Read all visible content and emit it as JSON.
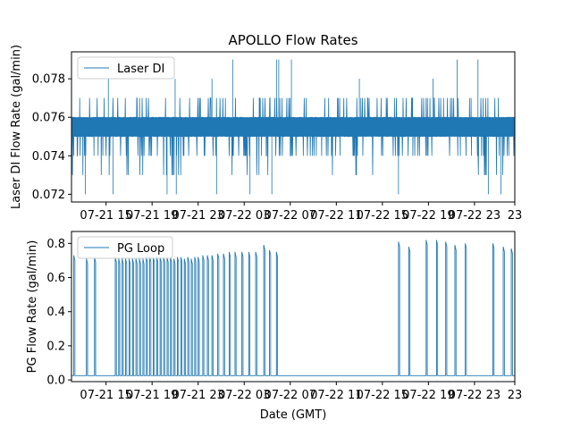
{
  "chart_data": [
    {
      "type": "line",
      "title": "APOLLO Flow Rates",
      "xlabel": "",
      "ylabel": "Laser DI Flow Rate (gal/min)",
      "legend": {
        "position": "top-left",
        "entries": [
          "Laser DI"
        ]
      },
      "series_color": "#1f77b4",
      "xlim_hours": [
        0,
        38.5
      ],
      "ylim": [
        0.0716,
        0.0794
      ],
      "x_ticks": [
        {
          "hour": 3,
          "label": "07-21 15"
        },
        {
          "hour": 7,
          "label": "07-21 19"
        },
        {
          "hour": 11,
          "label": "07-21 23"
        },
        {
          "hour": 15,
          "label": "07-22 03"
        },
        {
          "hour": 19,
          "label": "07-22 07"
        },
        {
          "hour": 23,
          "label": "07-22 11"
        },
        {
          "hour": 27,
          "label": "07-22 15"
        },
        {
          "hour": 31,
          "label": "07-22 19"
        },
        {
          "hour": 35,
          "label": "07-22 23"
        },
        {
          "hour": 38.5,
          "label": "23"
        }
      ],
      "y_ticks": [
        {
          "value": 0.072,
          "label": "0.072"
        },
        {
          "value": 0.074,
          "label": "0.074"
        },
        {
          "value": 0.076,
          "label": "0.076"
        },
        {
          "value": 0.078,
          "label": "0.078"
        }
      ],
      "series": [
        {
          "name": "Laser DI",
          "baseline_band": [
            0.075,
            0.076
          ],
          "typical_range": [
            0.073,
            0.077
          ],
          "spike_highs": [
            {
              "hour": 14.0,
              "value": 0.079
            },
            {
              "hour": 17.8,
              "value": 0.079
            },
            {
              "hour": 18.0,
              "value": 0.079
            },
            {
              "hour": 19.1,
              "value": 0.079
            },
            {
              "hour": 33.5,
              "value": 0.079
            },
            {
              "hour": 35.3,
              "value": 0.079
            },
            {
              "hour": 3.2,
              "value": 0.078
            },
            {
              "hour": 9.0,
              "value": 0.078
            },
            {
              "hour": 12.2,
              "value": 0.078
            },
            {
              "hour": 25.0,
              "value": 0.078
            },
            {
              "hour": 31.4,
              "value": 0.078
            }
          ],
          "spike_lows": [
            {
              "hour": 1.2,
              "value": 0.072
            },
            {
              "hour": 3.6,
              "value": 0.072
            },
            {
              "hour": 8.3,
              "value": 0.072
            },
            {
              "hour": 9.1,
              "value": 0.072
            },
            {
              "hour": 12.6,
              "value": 0.072
            },
            {
              "hour": 15.5,
              "value": 0.072
            },
            {
              "hour": 17.4,
              "value": 0.072
            },
            {
              "hour": 28.4,
              "value": 0.072
            },
            {
              "hour": 36.2,
              "value": 0.072
            },
            {
              "hour": 37.3,
              "value": 0.072
            }
          ]
        }
      ]
    },
    {
      "type": "line",
      "title": "",
      "xlabel": "Date (GMT)",
      "ylabel": "PG Flow Rate (gal/min)",
      "legend": {
        "position": "top-left",
        "entries": [
          "PG Loop"
        ]
      },
      "series_color": "#1f77b4",
      "xlim_hours": [
        0,
        38.5
      ],
      "ylim": [
        -0.01,
        0.87
      ],
      "x_ticks": [
        {
          "hour": 3,
          "label": "07-21 15"
        },
        {
          "hour": 7,
          "label": "07-21 19"
        },
        {
          "hour": 11,
          "label": "07-21 23"
        },
        {
          "hour": 15,
          "label": "07-22 03"
        },
        {
          "hour": 19,
          "label": "07-22 07"
        },
        {
          "hour": 23,
          "label": "07-22 11"
        },
        {
          "hour": 27,
          "label": "07-22 15"
        },
        {
          "hour": 31,
          "label": "07-22 19"
        },
        {
          "hour": 35,
          "label": "07-22 23"
        },
        {
          "hour": 38.5,
          "label": "23"
        }
      ],
      "y_ticks": [
        {
          "value": 0.0,
          "label": "0.0"
        },
        {
          "value": 0.2,
          "label": "0.2"
        },
        {
          "value": 0.4,
          "label": "0.4"
        },
        {
          "value": 0.6,
          "label": "0.6"
        },
        {
          "value": 0.8,
          "label": "0.8"
        }
      ],
      "series": [
        {
          "name": "PG Loop",
          "baseline": 0.025,
          "pulse_width_hours": 0.1,
          "pulses": [
            {
              "hour": 0.2,
              "peak": 0.73
            },
            {
              "hour": 1.3,
              "peak": 0.71
            },
            {
              "hour": 2.0,
              "peak": 0.72
            },
            {
              "hour": 3.8,
              "peak": 0.72
            },
            {
              "hour": 4.1,
              "peak": 0.71
            },
            {
              "hour": 4.4,
              "peak": 0.71
            },
            {
              "hour": 4.7,
              "peak": 0.71
            },
            {
              "hour": 5.0,
              "peak": 0.71
            },
            {
              "hour": 5.3,
              "peak": 0.71
            },
            {
              "hour": 5.6,
              "peak": 0.71
            },
            {
              "hour": 5.9,
              "peak": 0.71
            },
            {
              "hour": 6.2,
              "peak": 0.71
            },
            {
              "hour": 6.5,
              "peak": 0.72
            },
            {
              "hour": 6.8,
              "peak": 0.72
            },
            {
              "hour": 7.1,
              "peak": 0.72
            },
            {
              "hour": 7.4,
              "peak": 0.72
            },
            {
              "hour": 7.7,
              "peak": 0.72
            },
            {
              "hour": 8.0,
              "peak": 0.72
            },
            {
              "hour": 8.3,
              "peak": 0.72
            },
            {
              "hour": 8.6,
              "peak": 0.72
            },
            {
              "hour": 8.9,
              "peak": 0.71
            },
            {
              "hour": 9.2,
              "peak": 0.72
            },
            {
              "hour": 9.5,
              "peak": 0.72
            },
            {
              "hour": 9.8,
              "peak": 0.71
            },
            {
              "hour": 10.1,
              "peak": 0.72
            },
            {
              "hour": 10.4,
              "peak": 0.71
            },
            {
              "hour": 10.7,
              "peak": 0.72
            },
            {
              "hour": 11.0,
              "peak": 0.72
            },
            {
              "hour": 11.4,
              "peak": 0.73
            },
            {
              "hour": 11.8,
              "peak": 0.73
            },
            {
              "hour": 12.2,
              "peak": 0.73
            },
            {
              "hour": 12.7,
              "peak": 0.74
            },
            {
              "hour": 13.2,
              "peak": 0.74
            },
            {
              "hour": 13.7,
              "peak": 0.75
            },
            {
              "hour": 14.2,
              "peak": 0.75
            },
            {
              "hour": 14.8,
              "peak": 0.75
            },
            {
              "hour": 15.4,
              "peak": 0.75
            },
            {
              "hour": 16.0,
              "peak": 0.75
            },
            {
              "hour": 16.7,
              "peak": 0.79
            },
            {
              "hour": 17.2,
              "peak": 0.76
            },
            {
              "hour": 17.8,
              "peak": 0.75
            },
            {
              "hour": 28.4,
              "peak": 0.81
            },
            {
              "hour": 29.3,
              "peak": 0.78
            },
            {
              "hour": 30.8,
              "peak": 0.82
            },
            {
              "hour": 31.7,
              "peak": 0.82
            },
            {
              "hour": 32.5,
              "peak": 0.81
            },
            {
              "hour": 33.3,
              "peak": 0.79
            },
            {
              "hour": 34.2,
              "peak": 0.8
            },
            {
              "hour": 36.6,
              "peak": 0.8
            },
            {
              "hour": 37.5,
              "peak": 0.78
            },
            {
              "hour": 38.2,
              "peak": 0.77
            }
          ]
        }
      ]
    }
  ]
}
